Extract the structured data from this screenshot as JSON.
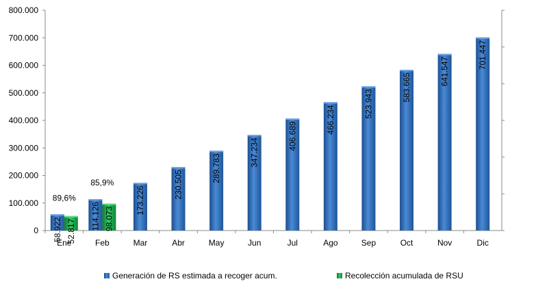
{
  "chart_data": {
    "type": "bar",
    "categories": [
      "Ene",
      "Feb",
      "Mar",
      "Abr",
      "May",
      "Jun",
      "Jul",
      "Ago",
      "Sep",
      "Oct",
      "Nov",
      "Dic"
    ],
    "series": [
      {
        "name": "Generación de RS estimada a recoger acum.",
        "color": "#2e6bb8",
        "values": [
          58922,
          114126,
          173226,
          230505,
          289783,
          347234,
          406689,
          466234,
          523943,
          583665,
          641547,
          701447
        ],
        "labels": [
          "58.922",
          "114.126",
          "173.226",
          "230.505",
          "289.783",
          "347.234",
          "406.689",
          "466.234",
          "523.943",
          "583.665",
          "641.547",
          "701.447"
        ]
      },
      {
        "name": "Recolección acumulada de RSU",
        "color": "#17a84a",
        "values": [
          52817,
          98073,
          null,
          null,
          null,
          null,
          null,
          null,
          null,
          null,
          null,
          null
        ],
        "labels": [
          "52.817",
          "98.073"
        ]
      }
    ],
    "annotations": [
      {
        "category": "Ene",
        "text": "89,6%"
      },
      {
        "category": "Feb",
        "text": "85,9%"
      }
    ],
    "yticks": [
      "0",
      "100.000",
      "200.000",
      "300.000",
      "400.000",
      "500.000",
      "600.000",
      "700.000",
      "800.000"
    ],
    "ylim": [
      0,
      800000
    ],
    "xlabel": "",
    "ylabel": "",
    "title": "",
    "grid": false,
    "legend_position": "bottom"
  }
}
